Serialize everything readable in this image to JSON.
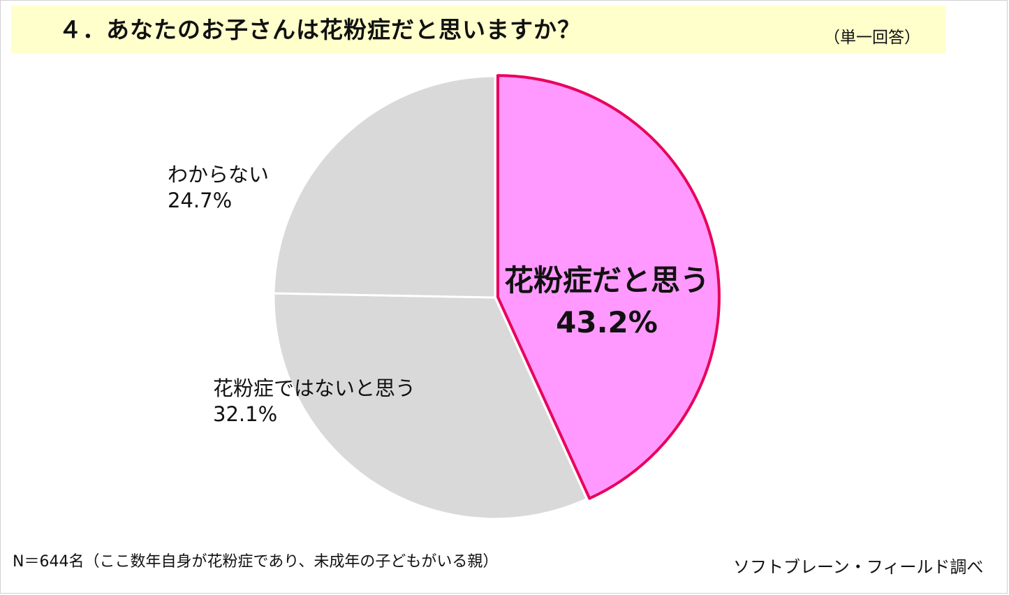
{
  "header": {
    "title": "４．あなたのお子さんは花粉症だと思いますか？",
    "answer_type": "（単一回答）"
  },
  "footer": {
    "sample_note": "N＝644名（ここ数年自身が花粉症であり、未成年の子どもがいる親）",
    "source": "ソフトブレーン・フィールド調べ"
  },
  "colors": {
    "highlight_fill": "#ff99ff",
    "highlight_stroke": "#e8005a",
    "other_fill": "#d9d9d9",
    "title_band": "#ffffcc"
  },
  "chart_data": {
    "type": "pie",
    "title": "４．あなたのお子さんは花粉症だと思いますか？",
    "slices": [
      {
        "label": "花粉症だと思う",
        "value": 43.2,
        "value_label": "43.2%",
        "highlight": true
      },
      {
        "label": "花粉症ではないと思う",
        "value": 32.1,
        "value_label": "32.1%",
        "highlight": false
      },
      {
        "label": "わからない",
        "value": 24.7,
        "value_label": "24.7%",
        "highlight": false
      }
    ],
    "start": "12 o'clock",
    "direction": "clockwise",
    "legend": "none"
  }
}
